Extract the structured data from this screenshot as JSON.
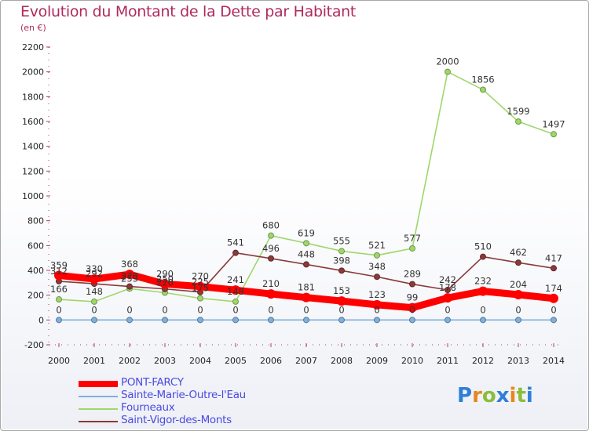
{
  "title": "Evolution du Montant de la Dette par Habitant",
  "subtitle": "(en €)",
  "logo": {
    "text": "Proxiti",
    "colors": [
      "#2f7fd8",
      "#e8861c",
      "#8bbd3a",
      "#2f7fd8",
      "#e8861c",
      "#8bbd3a",
      "#2f7fd8"
    ]
  },
  "chart_data": {
    "type": "line",
    "x": [
      "2000",
      "2001",
      "2002",
      "2003",
      "2004",
      "2005",
      "2006",
      "2007",
      "2008",
      "2009",
      "2010",
      "2011",
      "2012",
      "2013",
      "2014"
    ],
    "ylim": [
      -200,
      2200
    ],
    "yticks": [
      -200,
      0,
      200,
      400,
      600,
      800,
      1000,
      1200,
      1400,
      1600,
      1800,
      2000,
      2200
    ],
    "grid": false,
    "legend": "bottom-left",
    "series": [
      {
        "name": "PONT-FARCY",
        "color": "#ff0000",
        "values": [
          359,
          330,
          368,
          290,
          270,
          241,
          210,
          181,
          153,
          123,
          99,
          178,
          232,
          204,
          174
        ],
        "labels": [
          "359",
          "330",
          "368",
          "290",
          "270",
          "241",
          "210",
          "181",
          "153",
          "123",
          "99",
          "178",
          "232",
          "204",
          "174"
        ]
      },
      {
        "name": "Sainte-Marie-Outre-l'Eau",
        "color": "#7eb0dc",
        "values": [
          0,
          0,
          0,
          0,
          0,
          0,
          0,
          0,
          0,
          0,
          0,
          0,
          0,
          0,
          0
        ],
        "labels": [
          "0",
          "0",
          "0",
          "0",
          "0",
          "0",
          "0",
          "0",
          "0",
          "0",
          "0",
          "0",
          "0",
          "0",
          "0"
        ]
      },
      {
        "name": "Fourneaux",
        "color": "#9ed86a",
        "values": [
          166,
          148,
          253,
          220,
          175,
          148,
          680,
          619,
          555,
          521,
          577,
          2000,
          1856,
          1599,
          1497
        ],
        "labels": [
          "166",
          "148",
          "253",
          "220",
          "175",
          "148",
          "680",
          "619",
          "555",
          "521",
          "577",
          "2000",
          "1856",
          "1599",
          "1497"
        ]
      },
      {
        "name": "Saint-Vigor-des-Monts",
        "color": "#8a3a3a",
        "values": [
          312,
          292,
          270,
          250,
          225,
          541,
          496,
          448,
          398,
          348,
          289,
          242,
          510,
          462,
          417
        ],
        "labels": [
          "312",
          "292",
          "270",
          "250",
          "225",
          "541",
          "496",
          "448",
          "398",
          "348",
          "289",
          "242",
          "510",
          "462",
          "417"
        ]
      }
    ]
  }
}
